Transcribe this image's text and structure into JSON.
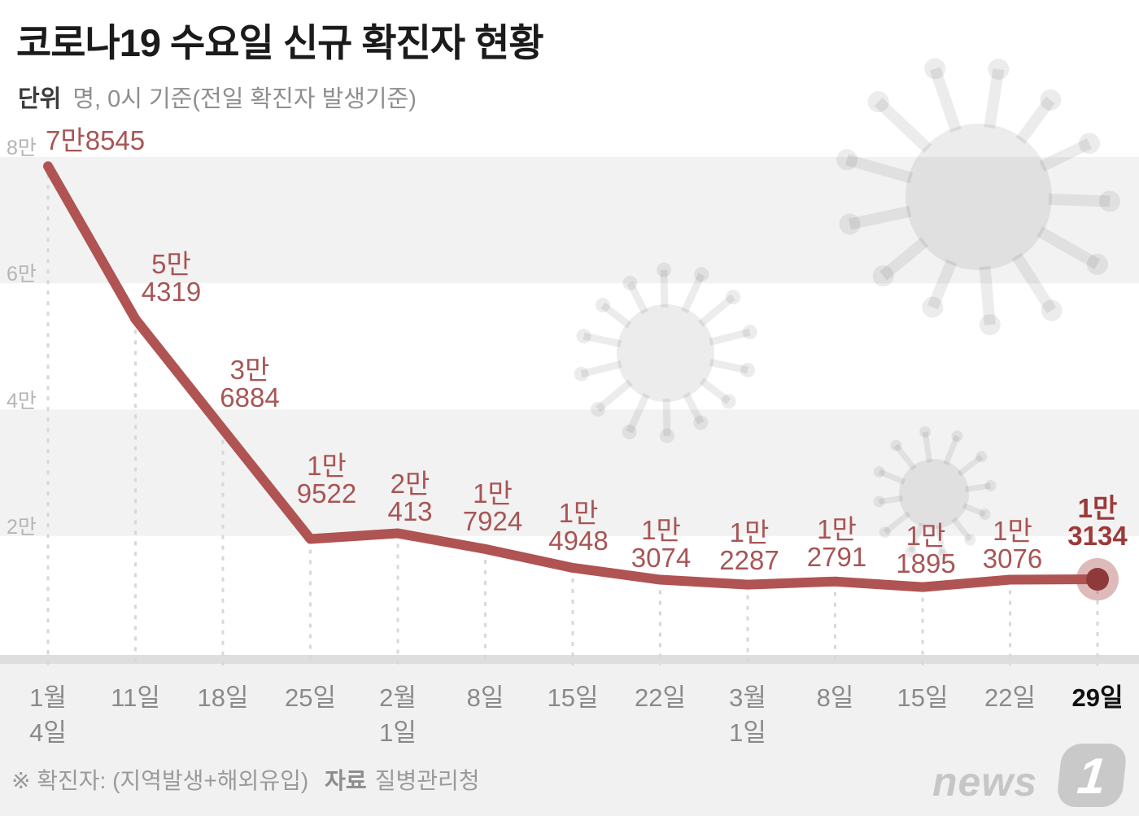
{
  "title": "코로나19 수요일 신규 확진자 현황",
  "subtitle": {
    "unit_word": "단위",
    "text": "명, 0시 기준(전일 확진자 발생기준)"
  },
  "footer": {
    "note": "※ 확진자: (지역발생+해외유입)",
    "source_word": "자료",
    "source": "질병관리청"
  },
  "logo": {
    "wordmark": "news",
    "badge": "1"
  },
  "colors": {
    "line": "#b05353",
    "marker_inner": "#8e3a3a",
    "marker_halo": "#b05353",
    "value_label": "#a85555",
    "value_label_last": "#9c3a3a",
    "band_gray": "#f2f2f2",
    "axis_strip": "#dedede",
    "bottom_panel": "#f1f1f1",
    "gridline": "#d8d8d8",
    "watermark": "rgba(0,0,0,0.075)"
  },
  "chart_data": {
    "type": "line",
    "title": "코로나19 수요일 신규 확진자 현황",
    "unit": "명, 0시 기준(전일 확진자 발생기준)",
    "x_labels": [
      [
        "1월",
        "4일"
      ],
      [
        "11일"
      ],
      [
        "18일"
      ],
      [
        "25일"
      ],
      [
        "2월",
        "1일"
      ],
      [
        "8일"
      ],
      [
        "15일"
      ],
      [
        "22일"
      ],
      [
        "3월",
        "1일"
      ],
      [
        "8일"
      ],
      [
        "15일"
      ],
      [
        "22일"
      ],
      [
        "29일"
      ]
    ],
    "values": [
      78545,
      54319,
      36884,
      19522,
      20413,
      17924,
      14948,
      13074,
      12287,
      12791,
      11895,
      13076,
      13134
    ],
    "value_labels": [
      [
        "7만8545"
      ],
      [
        "5만",
        "4319"
      ],
      [
        "3만",
        "6884"
      ],
      [
        "1만",
        "9522"
      ],
      [
        "2만",
        "413"
      ],
      [
        "1만",
        "7924"
      ],
      [
        "1만",
        "4948"
      ],
      [
        "1만",
        "3074"
      ],
      [
        "1만",
        "2287"
      ],
      [
        "1만",
        "2791"
      ],
      [
        "1만",
        "1895"
      ],
      [
        "1만",
        "3076"
      ],
      [
        "1만",
        "3134"
      ]
    ],
    "y_ticks": [
      "8만",
      "6만",
      "4만",
      "2만"
    ],
    "y_tick_values": [
      80000,
      60000,
      40000,
      20000
    ],
    "ylim": [
      0,
      80000
    ],
    "grid": "dashed-vertical-per-point",
    "legend": "none",
    "highlight_last_point": true
  }
}
